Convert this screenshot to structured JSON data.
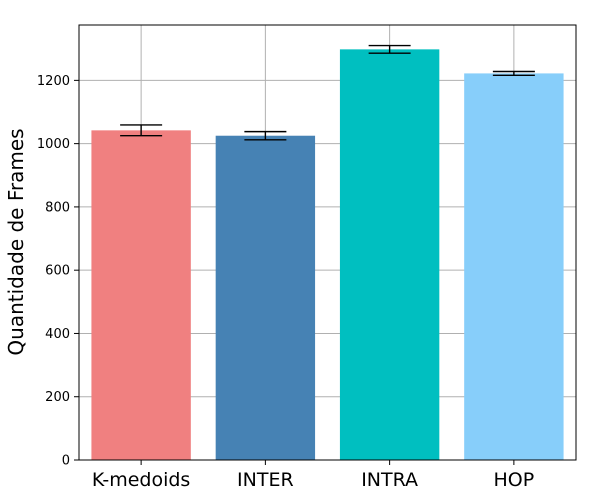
{
  "chart_data": {
    "type": "bar",
    "categories": [
      "K-medoids",
      "INTER",
      "INTRA",
      "HOP"
    ],
    "values": [
      1042,
      1025,
      1298,
      1222
    ],
    "errors": [
      17,
      13,
      12,
      6
    ],
    "colors": [
      "#f08080",
      "#4682b4",
      "#00bfc0",
      "#87cefa"
    ],
    "title": "",
    "xlabel": "",
    "ylabel": "Quantidade de Frames",
    "ylim": [
      0,
      1375
    ],
    "yticks": [
      0,
      200,
      400,
      600,
      800,
      1000,
      1200
    ],
    "grid": true
  }
}
